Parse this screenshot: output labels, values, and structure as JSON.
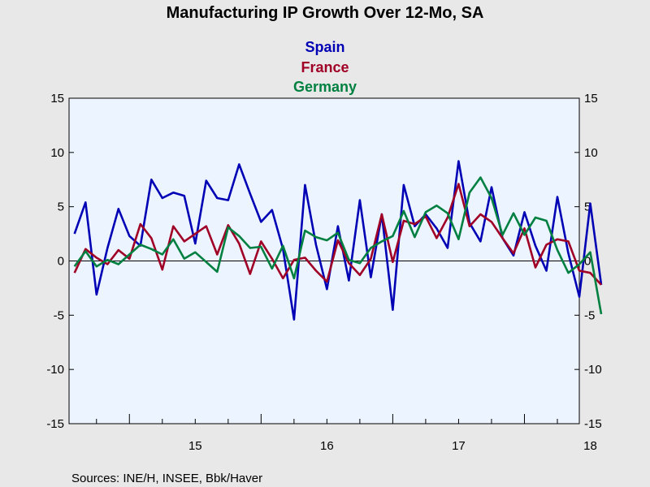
{
  "chart_data": {
    "type": "line",
    "title": "Manufacturing IP Growth Over 12-Mo, SA",
    "source": "Sources:  INE/H, INSEE, Bbk/Haver",
    "ylim": [
      -15,
      15
    ],
    "yticks": [
      -15,
      -10,
      -5,
      0,
      5,
      10,
      15
    ],
    "xlim": [
      2014.5417,
      2018.4167
    ],
    "x_tick_labels": [
      {
        "label": "15",
        "x": 2015.5
      },
      {
        "label": "16",
        "x": 2016.5
      },
      {
        "label": "17",
        "x": 2017.5
      },
      {
        "label": "18",
        "x": 2018.5
      }
    ],
    "start": {
      "year": 2014,
      "month": 8
    },
    "series": [
      {
        "name": "Spain",
        "color": "#0000b4",
        "values": [
          2.5,
          5.4,
          -3.1,
          1.2,
          4.8,
          2.3,
          1.4,
          7.5,
          5.8,
          6.3,
          6.0,
          1.6,
          7.4,
          5.8,
          5.6,
          8.9,
          6.2,
          3.6,
          4.7,
          1.1,
          -5.4,
          7.0,
          1.5,
          -2.6,
          3.2,
          -1.8,
          5.6,
          -1.5,
          4.3,
          -4.5,
          7.0,
          3.2,
          4.3,
          3.0,
          1.2,
          9.2,
          3.5,
          1.8,
          6.8,
          2.1,
          0.5,
          4.5,
          1.4,
          -0.9,
          5.9,
          0.7,
          -3.3,
          5.3,
          -2.2
        ]
      },
      {
        "name": "France",
        "color": "#a00026",
        "values": [
          -1.1,
          1.1,
          0.3,
          -0.3,
          1.0,
          0.2,
          3.4,
          2.1,
          -0.8,
          3.2,
          1.8,
          2.5,
          3.2,
          0.6,
          3.3,
          1.6,
          -1.2,
          1.8,
          0.2,
          -1.6,
          0.1,
          0.3,
          -0.9,
          -1.9,
          1.9,
          -0.2,
          -1.3,
          0.2,
          4.3,
          -0.1,
          3.7,
          3.4,
          4.1,
          2.1,
          4.0,
          7.1,
          3.2,
          4.3,
          3.6,
          2.1,
          0.7,
          3.0,
          -0.6,
          1.5,
          2.0,
          1.8,
          -0.9,
          -1.1,
          -2.2
        ]
      },
      {
        "name": "Germany",
        "color": "#008040",
        "values": [
          -0.5,
          0.9,
          -0.5,
          0.1,
          -0.3,
          0.6,
          1.5,
          1.1,
          0.6,
          2.0,
          0.2,
          0.8,
          -0.1,
          -1.0,
          3.1,
          2.3,
          1.2,
          1.3,
          -0.7,
          1.4,
          -1.6,
          2.8,
          2.2,
          1.9,
          2.6,
          0.1,
          -0.2,
          1.2,
          1.8,
          2.3,
          4.6,
          2.2,
          4.5,
          5.1,
          4.4,
          2.0,
          6.3,
          7.7,
          5.8,
          2.4,
          4.4,
          2.4,
          4.0,
          3.7,
          1.0,
          -1.1,
          -0.3,
          0.8,
          -4.9
        ]
      }
    ]
  }
}
